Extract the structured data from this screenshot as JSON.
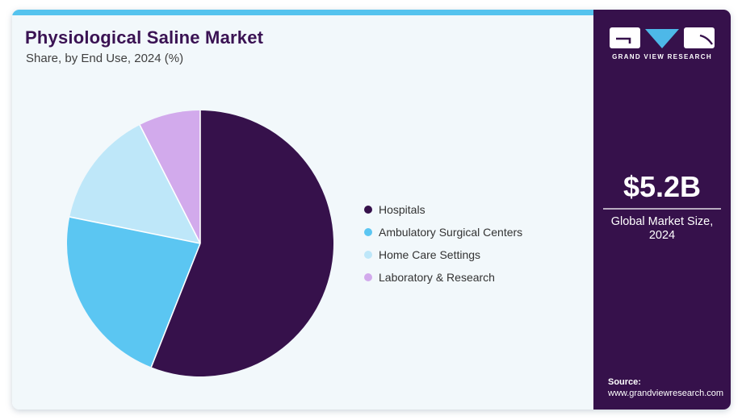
{
  "header": {
    "title": "Physiological Saline Market",
    "subtitle": "Share, by End Use, 2024 (%)"
  },
  "chart_data": {
    "type": "pie",
    "title": "Physiological Saline Market Share, by End Use, 2024 (%)",
    "categories": [
      "Hospitals",
      "Ambulatory Surgical Centers",
      "Home Care Settings",
      "Laboratory & Research"
    ],
    "values": [
      56.0,
      22.2,
      14.3,
      7.5
    ],
    "unit": "%",
    "colors": [
      "#36114B",
      "#5BC6F2",
      "#BEE7F9",
      "#D2AAEC"
    ],
    "start_angle_deg": 0,
    "direction": "clockwise",
    "legend_position": "right",
    "data_labels_shown": false
  },
  "sidebar": {
    "logo": {
      "text": "GRAND VIEW RESEARCH",
      "triangle_color": "#4DB8E8"
    },
    "market_size": {
      "value": "$5.2B",
      "label": "Global Market Size, 2024"
    },
    "source": {
      "label": "Source:",
      "url": "www.grandviewresearch.com"
    }
  },
  "theme": {
    "topbar_blue": "#55C3EE",
    "panel_background": "#F2F8FB",
    "sidebar_background": "#36114B",
    "title_color": "#3A1253"
  }
}
